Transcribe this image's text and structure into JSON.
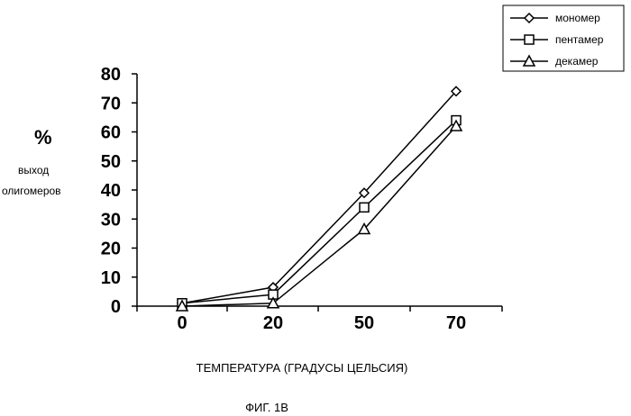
{
  "chart_data": {
    "type": "line",
    "categories": [
      "0",
      "20",
      "50",
      "70"
    ],
    "ylim": [
      0,
      80
    ],
    "yticks": [
      "0",
      "10",
      "20",
      "30",
      "40",
      "50",
      "60",
      "70",
      "80"
    ],
    "ylabel_symbol": "%",
    "ylabel_line1": "выход",
    "ylabel_line2": "олигомеров",
    "xlabel": "ТЕМПЕРАТУРА (ГРАДУСЫ  ЦЕЛЬСИЯ)",
    "caption": "ФИГ. 1В",
    "legend_position": "top-right",
    "grid": false,
    "series": [
      {
        "name": "мономер",
        "marker": "diamond",
        "values": [
          1,
          6.5,
          39,
          74
        ]
      },
      {
        "name": "пентамер",
        "marker": "square",
        "values": [
          1,
          4,
          34,
          64
        ]
      },
      {
        "name": "декамер",
        "marker": "triangle",
        "values": [
          0,
          1,
          26.5,
          62
        ]
      }
    ]
  }
}
